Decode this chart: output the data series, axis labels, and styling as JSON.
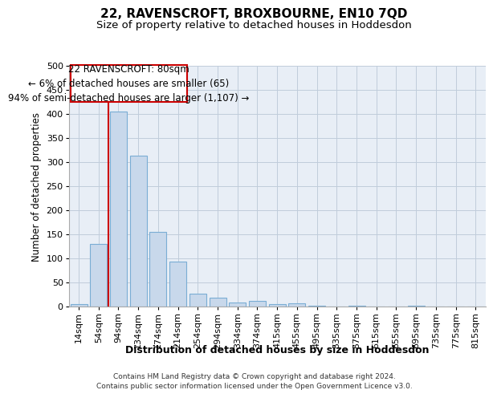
{
  "title": "22, RAVENSCROFT, BROXBOURNE, EN10 7QD",
  "subtitle": "Size of property relative to detached houses in Hoddesdon",
  "xlabel": "Distribution of detached houses by size in Hoddesdon",
  "ylabel": "Number of detached properties",
  "categories": [
    "14sqm",
    "54sqm",
    "94sqm",
    "134sqm",
    "174sqm",
    "214sqm",
    "254sqm",
    "294sqm",
    "334sqm",
    "374sqm",
    "415sqm",
    "455sqm",
    "495sqm",
    "535sqm",
    "575sqm",
    "615sqm",
    "655sqm",
    "695sqm",
    "735sqm",
    "775sqm",
    "815sqm"
  ],
  "values": [
    5,
    130,
    405,
    313,
    155,
    93,
    27,
    18,
    9,
    12,
    5,
    6,
    1,
    0,
    2,
    0,
    0,
    1,
    0,
    0,
    0
  ],
  "bar_color": "#c8d8eb",
  "bar_edge_color": "#7aadd4",
  "property_line_x": 1.5,
  "property_line_color": "#cc0000",
  "annotation_text_line1": "22 RAVENSCROFT: 80sqm",
  "annotation_text_line2": "← 6% of detached houses are smaller (65)",
  "annotation_text_line3": "94% of semi-detached houses are larger (1,107) →",
  "annotation_box_color": "#cc0000",
  "annotation_box_facecolor": "#ffffff",
  "ylim": [
    0,
    500
  ],
  "yticks": [
    0,
    50,
    100,
    150,
    200,
    250,
    300,
    350,
    400,
    450,
    500
  ],
  "grid_color": "#c0ccdb",
  "bg_color": "#e8eef6",
  "footer1": "Contains HM Land Registry data © Crown copyright and database right 2024.",
  "footer2": "Contains public sector information licensed under the Open Government Licence v3.0.",
  "title_fontsize": 11,
  "subtitle_fontsize": 9.5,
  "xlabel_fontsize": 9,
  "ylabel_fontsize": 8.5,
  "tick_fontsize": 8,
  "annotation_fontsize": 8.5,
  "footer_fontsize": 6.5
}
